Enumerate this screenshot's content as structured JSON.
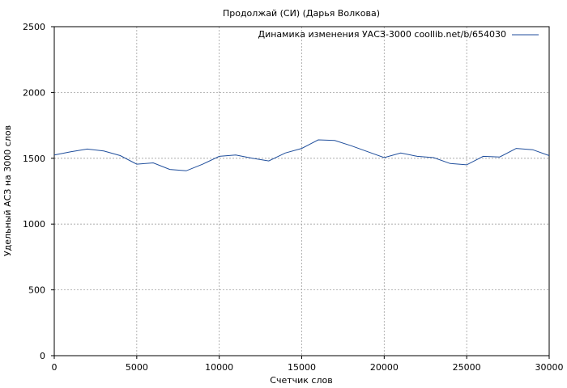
{
  "chart_data": {
    "type": "line",
    "title": "Продолжай (СИ) (Дарья Волкова)",
    "xlabel": "Счетчик слов",
    "ylabel": "Удельный АСЗ на 3000 слов",
    "xlim": [
      0,
      30000
    ],
    "ylim": [
      0,
      2500
    ],
    "x_ticks": [
      0,
      5000,
      10000,
      15000,
      20000,
      25000,
      30000
    ],
    "y_ticks": [
      0,
      500,
      1000,
      1500,
      2000,
      2500
    ],
    "grid": true,
    "legend_position": "top-right",
    "series": [
      {
        "name": "Динамика изменения УАСЗ-3000 coollib.net/b/654030",
        "color": "#1f4e9c",
        "x": [
          0,
          1000,
          2000,
          3000,
          4000,
          5000,
          6000,
          7000,
          8000,
          9000,
          10000,
          11000,
          12000,
          13000,
          14000,
          15000,
          16000,
          17000,
          18000,
          19000,
          20000,
          21000,
          22000,
          23000,
          24000,
          25000,
          26000,
          27000,
          28000,
          29000,
          30000
        ],
        "values": [
          1525,
          1550,
          1570,
          1555,
          1520,
          1455,
          1465,
          1415,
          1405,
          1455,
          1515,
          1525,
          1500,
          1480,
          1540,
          1575,
          1640,
          1635,
          1595,
          1550,
          1505,
          1540,
          1515,
          1505,
          1460,
          1450,
          1515,
          1510,
          1575,
          1565,
          1520
        ]
      }
    ]
  }
}
